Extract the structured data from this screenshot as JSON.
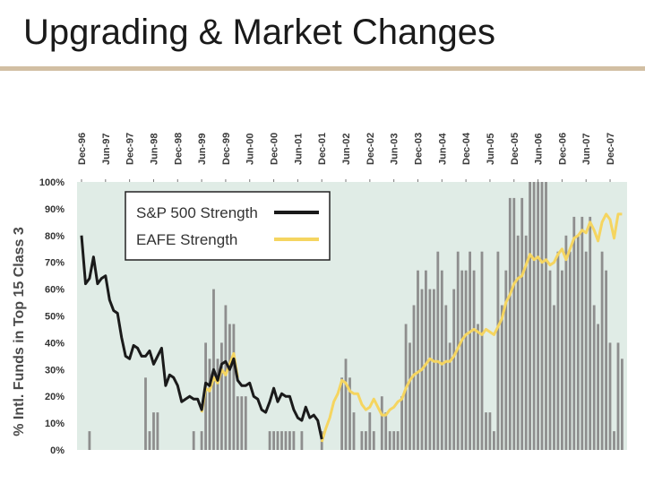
{
  "slide": {
    "title": "Upgrading & Market Changes"
  },
  "colors": {
    "title_rule": "#d2bfa3",
    "plot_bg": "#e0ece6",
    "bar": "#8e8e8e",
    "sp500_line": "#1a1a1a",
    "eafe_line": "#f5d560",
    "legend_bg": "#ffffff"
  },
  "chart_data": {
    "type": "bar+line",
    "title": "",
    "xlabel": "",
    "ylabel": "% Intl. Funds in Top 15 Class 3",
    "ylim": [
      0,
      100
    ],
    "y_ticks": [
      "0%",
      "10%",
      "20%",
      "30%",
      "40%",
      "50%",
      "60%",
      "70%",
      "80%",
      "90%",
      "100%"
    ],
    "x_range": [
      0,
      135
    ],
    "x_ticks": [
      {
        "label": "Dec-96",
        "m": 0
      },
      {
        "label": "Jun-97",
        "m": 6
      },
      {
        "label": "Dec-97",
        "m": 12
      },
      {
        "label": "Jun-98",
        "m": 18
      },
      {
        "label": "Dec-98",
        "m": 24
      },
      {
        "label": "Jun-99",
        "m": 30
      },
      {
        "label": "Dec-99",
        "m": 36
      },
      {
        "label": "Jun-00",
        "m": 42
      },
      {
        "label": "Dec-00",
        "m": 48
      },
      {
        "label": "Jun-01",
        "m": 54
      },
      {
        "label": "Dec-01",
        "m": 60
      },
      {
        "label": "Jun-02",
        "m": 66
      },
      {
        "label": "Dec-02",
        "m": 72
      },
      {
        "label": "Jun-03",
        "m": 78
      },
      {
        "label": "Dec-03",
        "m": 84
      },
      {
        "label": "Jun-04",
        "m": 90
      },
      {
        "label": "Dec-04",
        "m": 96
      },
      {
        "label": "Jun-05",
        "m": 102
      },
      {
        "label": "Dec-05",
        "m": 108
      },
      {
        "label": "Jun-06",
        "m": 114
      },
      {
        "label": "Dec-06",
        "m": 120
      },
      {
        "label": "Jun-07",
        "m": 126
      },
      {
        "label": "Dec-07",
        "m": 132
      }
    ],
    "legend": {
      "position": "top-left",
      "entries": [
        "S&P 500 Strength",
        "EAFE Strength"
      ]
    },
    "bars": [
      {
        "m": 2,
        "v": 7
      },
      {
        "m": 16,
        "v": 27
      },
      {
        "m": 17,
        "v": 7
      },
      {
        "m": 18,
        "v": 14
      },
      {
        "m": 19,
        "v": 14
      },
      {
        "m": 28,
        "v": 7
      },
      {
        "m": 30,
        "v": 7
      },
      {
        "m": 31,
        "v": 40
      },
      {
        "m": 32,
        "v": 34
      },
      {
        "m": 33,
        "v": 60
      },
      {
        "m": 34,
        "v": 34
      },
      {
        "m": 35,
        "v": 40
      },
      {
        "m": 36,
        "v": 54
      },
      {
        "m": 37,
        "v": 47
      },
      {
        "m": 38,
        "v": 47
      },
      {
        "m": 39,
        "v": 20
      },
      {
        "m": 40,
        "v": 20
      },
      {
        "m": 41,
        "v": 20
      },
      {
        "m": 47,
        "v": 7
      },
      {
        "m": 48,
        "v": 7
      },
      {
        "m": 49,
        "v": 7
      },
      {
        "m": 50,
        "v": 7
      },
      {
        "m": 51,
        "v": 7
      },
      {
        "m": 52,
        "v": 7
      },
      {
        "m": 53,
        "v": 7
      },
      {
        "m": 55,
        "v": 7
      },
      {
        "m": 60,
        "v": 7
      },
      {
        "m": 65,
        "v": 27
      },
      {
        "m": 66,
        "v": 34
      },
      {
        "m": 67,
        "v": 27
      },
      {
        "m": 68,
        "v": 14
      },
      {
        "m": 70,
        "v": 7
      },
      {
        "m": 71,
        "v": 7
      },
      {
        "m": 72,
        "v": 14
      },
      {
        "m": 73,
        "v": 7
      },
      {
        "m": 75,
        "v": 20
      },
      {
        "m": 76,
        "v": 14
      },
      {
        "m": 77,
        "v": 7
      },
      {
        "m": 78,
        "v": 7
      },
      {
        "m": 79,
        "v": 7
      },
      {
        "m": 80,
        "v": 20
      },
      {
        "m": 81,
        "v": 47
      },
      {
        "m": 82,
        "v": 40
      },
      {
        "m": 83,
        "v": 54
      },
      {
        "m": 84,
        "v": 67
      },
      {
        "m": 85,
        "v": 60
      },
      {
        "m": 86,
        "v": 67
      },
      {
        "m": 87,
        "v": 60
      },
      {
        "m": 88,
        "v": 60
      },
      {
        "m": 89,
        "v": 74
      },
      {
        "m": 90,
        "v": 67
      },
      {
        "m": 91,
        "v": 54
      },
      {
        "m": 92,
        "v": 40
      },
      {
        "m": 93,
        "v": 60
      },
      {
        "m": 94,
        "v": 74
      },
      {
        "m": 95,
        "v": 67
      },
      {
        "m": 96,
        "v": 67
      },
      {
        "m": 97,
        "v": 74
      },
      {
        "m": 98,
        "v": 67
      },
      {
        "m": 99,
        "v": 47
      },
      {
        "m": 100,
        "v": 74
      },
      {
        "m": 101,
        "v": 14
      },
      {
        "m": 102,
        "v": 14
      },
      {
        "m": 103,
        "v": 7
      },
      {
        "m": 104,
        "v": 74
      },
      {
        "m": 105,
        "v": 54
      },
      {
        "m": 106,
        "v": 67
      },
      {
        "m": 107,
        "v": 94
      },
      {
        "m": 108,
        "v": 94
      },
      {
        "m": 109,
        "v": 80
      },
      {
        "m": 110,
        "v": 94
      },
      {
        "m": 111,
        "v": 80
      },
      {
        "m": 112,
        "v": 100
      },
      {
        "m": 113,
        "v": 100
      },
      {
        "m": 114,
        "v": 100
      },
      {
        "m": 115,
        "v": 100
      },
      {
        "m": 116,
        "v": 100
      },
      {
        "m": 117,
        "v": 67
      },
      {
        "m": 118,
        "v": 54
      },
      {
        "m": 119,
        "v": 74
      },
      {
        "m": 120,
        "v": 67
      },
      {
        "m": 121,
        "v": 80
      },
      {
        "m": 122,
        "v": 74
      },
      {
        "m": 123,
        "v": 87
      },
      {
        "m": 124,
        "v": 80
      },
      {
        "m": 125,
        "v": 87
      },
      {
        "m": 126,
        "v": 74
      },
      {
        "m": 127,
        "v": 87
      },
      {
        "m": 128,
        "v": 54
      },
      {
        "m": 129,
        "v": 47
      },
      {
        "m": 130,
        "v": 74
      },
      {
        "m": 131,
        "v": 67
      },
      {
        "m": 132,
        "v": 40
      },
      {
        "m": 133,
        "v": 7
      },
      {
        "m": 134,
        "v": 40
      },
      {
        "m": 135,
        "v": 34
      }
    ],
    "series": [
      {
        "name": "S&P 500 Strength",
        "points": [
          [
            0,
            80
          ],
          [
            1,
            62
          ],
          [
            2,
            64
          ],
          [
            3,
            72
          ],
          [
            4,
            62
          ],
          [
            5,
            64
          ],
          [
            6,
            65
          ],
          [
            7,
            56
          ],
          [
            8,
            52
          ],
          [
            9,
            51
          ],
          [
            10,
            42
          ],
          [
            11,
            35
          ],
          [
            12,
            34
          ],
          [
            13,
            39
          ],
          [
            14,
            38
          ],
          [
            15,
            35
          ],
          [
            16,
            35
          ],
          [
            17,
            37
          ],
          [
            18,
            32
          ],
          [
            19,
            35
          ],
          [
            20,
            38
          ],
          [
            21,
            24
          ],
          [
            22,
            28
          ],
          [
            23,
            27
          ],
          [
            24,
            24
          ],
          [
            25,
            18
          ],
          [
            26,
            19
          ],
          [
            27,
            20
          ],
          [
            28,
            19
          ],
          [
            29,
            19
          ],
          [
            30,
            15
          ],
          [
            31,
            25
          ],
          [
            32,
            24
          ],
          [
            33,
            30
          ],
          [
            34,
            26
          ],
          [
            35,
            32
          ],
          [
            36,
            33
          ],
          [
            37,
            30
          ],
          [
            38,
            34
          ],
          [
            39,
            26
          ],
          [
            40,
            24
          ],
          [
            41,
            24
          ],
          [
            42,
            25
          ],
          [
            43,
            20
          ],
          [
            44,
            19
          ],
          [
            45,
            15
          ],
          [
            46,
            14
          ],
          [
            47,
            18
          ],
          [
            48,
            23
          ],
          [
            49,
            18
          ],
          [
            50,
            21
          ],
          [
            51,
            20
          ],
          [
            52,
            20
          ],
          [
            53,
            15
          ],
          [
            54,
            12
          ],
          [
            55,
            11
          ],
          [
            56,
            16
          ],
          [
            57,
            12
          ],
          [
            58,
            13
          ],
          [
            59,
            11
          ],
          [
            60,
            4
          ]
        ]
      },
      {
        "name": "EAFE Strength",
        "points": [
          [
            30,
            14
          ],
          [
            31,
            23
          ],
          [
            32,
            22
          ],
          [
            33,
            27
          ],
          [
            34,
            25
          ],
          [
            35,
            30
          ],
          [
            36,
            28
          ],
          [
            37,
            32
          ],
          [
            38,
            36
          ],
          [
            39,
            27
          ],
          [
            60,
            3
          ],
          [
            61,
            8
          ],
          [
            62,
            12
          ],
          [
            63,
            18
          ],
          [
            64,
            21
          ],
          [
            65,
            26
          ],
          [
            66,
            25
          ],
          [
            67,
            22
          ],
          [
            68,
            21
          ],
          [
            69,
            21
          ],
          [
            70,
            17
          ],
          [
            71,
            15
          ],
          [
            72,
            16
          ],
          [
            73,
            19
          ],
          [
            74,
            16
          ],
          [
            75,
            13
          ],
          [
            76,
            13
          ],
          [
            77,
            15
          ],
          [
            78,
            16
          ],
          [
            79,
            18
          ],
          [
            80,
            19
          ],
          [
            81,
            23
          ],
          [
            82,
            26
          ],
          [
            83,
            28
          ],
          [
            84,
            29
          ],
          [
            85,
            30
          ],
          [
            86,
            32
          ],
          [
            87,
            34
          ],
          [
            88,
            33
          ],
          [
            89,
            33
          ],
          [
            90,
            32
          ],
          [
            91,
            33
          ],
          [
            92,
            33
          ],
          [
            93,
            35
          ],
          [
            94,
            38
          ],
          [
            95,
            41
          ],
          [
            96,
            43
          ],
          [
            97,
            44
          ],
          [
            98,
            45
          ],
          [
            99,
            44
          ],
          [
            100,
            43
          ],
          [
            101,
            45
          ],
          [
            102,
            44
          ],
          [
            103,
            43
          ],
          [
            104,
            46
          ],
          [
            105,
            49
          ],
          [
            106,
            55
          ],
          [
            107,
            58
          ],
          [
            108,
            62
          ],
          [
            109,
            64
          ],
          [
            110,
            65
          ],
          [
            111,
            69
          ],
          [
            112,
            73
          ],
          [
            113,
            71
          ],
          [
            114,
            72
          ],
          [
            115,
            70
          ],
          [
            116,
            71
          ],
          [
            117,
            69
          ],
          [
            118,
            70
          ],
          [
            119,
            73
          ],
          [
            120,
            75
          ],
          [
            121,
            71
          ],
          [
            122,
            75
          ],
          [
            123,
            79
          ],
          [
            124,
            80
          ],
          [
            125,
            82
          ],
          [
            126,
            81
          ],
          [
            127,
            85
          ],
          [
            128,
            82
          ],
          [
            129,
            78
          ],
          [
            130,
            85
          ],
          [
            131,
            88
          ],
          [
            132,
            86
          ],
          [
            133,
            79
          ],
          [
            134,
            88
          ],
          [
            135,
            88
          ]
        ]
      }
    ]
  }
}
